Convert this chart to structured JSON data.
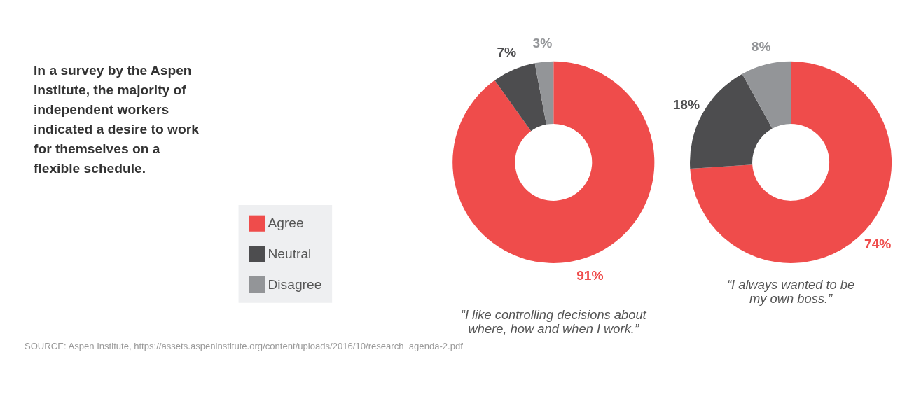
{
  "chart_data": [
    {
      "type": "donut",
      "title": "In a survey by the Aspen Institute, the majority of independent workers indicated a desire to work for themselves on a flexible schedule.",
      "xlabel": "“I like controlling decisions about where, how and when I work.”",
      "categories": [
        "Agree",
        "Neutral",
        "Disagree"
      ],
      "values": [
        91,
        7,
        3
      ],
      "colors": [
        "#ef4c4b",
        "#4d4d4f",
        "#939598"
      ],
      "value_labels": [
        "91%",
        "7%",
        "3%"
      ],
      "legend": "left",
      "annotations": [
        "SOURCE: Aspen Institute, https://assets.aspeninstitute.org/content/uploads/2016/10/research_agenda-2.pdf"
      ]
    },
    {
      "type": "donut",
      "xlabel": "“I always wanted to be my own boss.”",
      "categories": [
        null,
        null,
        null
      ],
      "values": [
        74,
        18,
        8
      ],
      "colors": [
        "#ef4c4b",
        "#4d4d4f",
        "#939598"
      ],
      "value_labels": [
        "74%",
        "18%",
        "8%"
      ]
    }
  ]
}
